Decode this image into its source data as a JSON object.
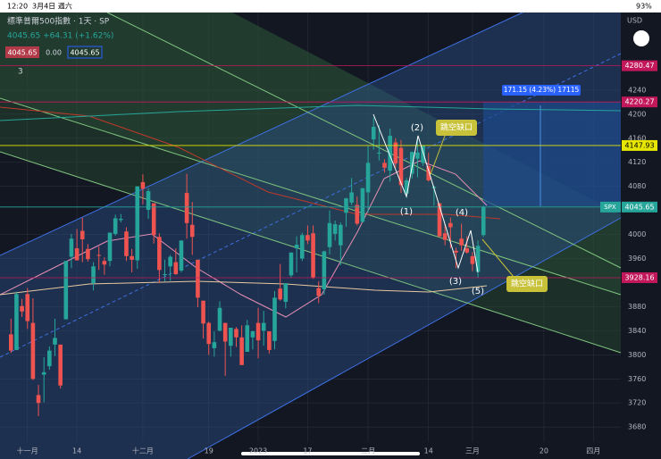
{
  "status_bar": {
    "time": "12:20",
    "date": "3月4日 週六",
    "battery": "93%"
  },
  "chart_data": {
    "type": "candlestick",
    "title": "標準普爾500指數 · 1天 · SP",
    "quote": "4045.65 +64.31 (+1.62%)",
    "bid": "4045.65",
    "spread": "0.00",
    "ask": "4045.65",
    "indicator_count": "3",
    "currency": "USD",
    "symbol": "SPX",
    "up_color": "#26a69a",
    "down_color": "#ef5350",
    "ylim": [
      3655,
      4369
    ],
    "xlim": [
      -2,
      111
    ],
    "yticks": [
      3680,
      3720,
      3760,
      3800,
      3840,
      3880,
      3960,
      4000,
      4080,
      4120,
      4160,
      4200,
      4240
    ],
    "xticks": [
      {
        "value": 3,
        "label": "十一月"
      },
      {
        "value": 12,
        "label": "14"
      },
      {
        "value": 24,
        "label": "十二月"
      },
      {
        "value": 36,
        "label": "19"
      },
      {
        "value": 45,
        "label": "2023"
      },
      {
        "value": 54,
        "label": "17"
      },
      {
        "value": 65,
        "label": "二月"
      },
      {
        "value": 76,
        "label": "14"
      },
      {
        "value": 84,
        "label": "三月"
      },
      {
        "value": 97,
        "label": "20"
      },
      {
        "value": 106,
        "label": "四月"
      }
    ],
    "price_labels": [
      {
        "value": 4280.47,
        "color": "#c2185b"
      },
      {
        "value": 4220.27,
        "color": "#c2185b"
      },
      {
        "value": 4147.93,
        "color": "#e6e600"
      },
      {
        "value": 4045.65,
        "color": "#26a69a"
      },
      {
        "value": 3928.16,
        "color": "#c2185b"
      }
    ],
    "measure": "171.15 (4.23%) 17115",
    "wave_labels": [
      "(1)",
      "(2)",
      "(3)",
      "(4)",
      "(5)"
    ],
    "gap_labels": [
      "跳空缺口",
      "跳空缺口"
    ],
    "candles": [
      [
        3834,
        3860,
        3803,
        3807
      ],
      [
        3808,
        3905,
        3808,
        3901
      ],
      [
        3881,
        3893,
        3863,
        3872
      ],
      [
        3901,
        3911,
        3843,
        3856
      ],
      [
        3853,
        3894,
        3758,
        3760
      ],
      [
        3733,
        3750,
        3698,
        3720
      ],
      [
        3767,
        3796,
        3721,
        3771
      ],
      [
        3781,
        3814,
        3775,
        3807
      ],
      [
        3817,
        3860,
        3798,
        3828
      ],
      [
        3817,
        3817,
        3744,
        3749
      ],
      [
        3859,
        3956,
        3859,
        3956
      ],
      [
        3963,
        4001,
        3944,
        3993
      ],
      [
        3977,
        4009,
        3957,
        3957
      ],
      [
        4006,
        4028,
        3954,
        3992
      ],
      [
        3976,
        3984,
        3955,
        3959
      ],
      [
        3919,
        3954,
        3907,
        3947
      ],
      [
        3966,
        3980,
        3941,
        3965
      ],
      [
        3956,
        3962,
        3933,
        3950
      ],
      [
        3956,
        4003,
        3947,
        4003
      ],
      [
        4001,
        4033,
        3998,
        4027
      ],
      [
        4024,
        4034,
        4020,
        4026
      ],
      [
        4005,
        4012,
        3956,
        3964
      ],
      [
        3964,
        3976,
        3937,
        3958
      ],
      [
        3957,
        4080,
        3943,
        4080
      ],
      [
        4087,
        4100,
        4050,
        4076
      ],
      [
        4041,
        4077,
        4026,
        4072
      ],
      [
        4052,
        4052,
        3985,
        3999
      ],
      [
        3996,
        4002,
        3919,
        3941
      ],
      [
        3933,
        3958,
        3922,
        3934
      ],
      [
        3947,
        3966,
        3923,
        3963
      ],
      [
        3954,
        3977,
        3933,
        3934
      ],
      [
        3940,
        3990,
        3937,
        3990
      ],
      [
        4069,
        4101,
        3993,
        4019
      ],
      [
        4016,
        4054,
        3966,
        3996
      ],
      [
        3958,
        3958,
        3879,
        3895
      ],
      [
        3890,
        3890,
        3827,
        3852
      ],
      [
        3853,
        3855,
        3800,
        3818
      ],
      [
        3811,
        3839,
        3797,
        3821
      ],
      [
        3840,
        3889,
        3839,
        3878
      ],
      [
        3853,
        3853,
        3765,
        3822
      ],
      [
        3815,
        3845,
        3797,
        3845
      ],
      [
        3843,
        3846,
        3813,
        3829
      ],
      [
        3829,
        3849,
        3783,
        3783
      ],
      [
        3805,
        3858,
        3805,
        3849
      ],
      [
        3829,
        3840,
        3809,
        3839
      ],
      [
        3853,
        3878,
        3794,
        3824
      ],
      [
        3840,
        3873,
        3815,
        3853
      ],
      [
        3839,
        3839,
        3802,
        3808
      ],
      [
        3823,
        3906,
        3809,
        3895
      ],
      [
        3910,
        3951,
        3890,
        3892
      ],
      [
        3888,
        3919,
        3877,
        3919
      ],
      [
        3932,
        3970,
        3928,
        3970
      ],
      [
        3977,
        3997,
        3937,
        3983
      ],
      [
        3960,
        4003,
        3956,
        3999
      ],
      [
        3999,
        4015,
        3984,
        3990
      ],
      [
        4002,
        4015,
        3926,
        3928
      ],
      [
        3911,
        3922,
        3886,
        3898
      ],
      [
        3909,
        3973,
        3900,
        3972
      ],
      [
        3979,
        4040,
        3967,
        4019
      ],
      [
        4001,
        4023,
        3990,
        4017
      ],
      [
        3982,
        4020,
        3949,
        4016
      ],
      [
        4036,
        4061,
        4013,
        4060
      ],
      [
        4053,
        4094,
        4049,
        4070
      ],
      [
        4049,
        4063,
        4015,
        4018
      ],
      [
        4021,
        4077,
        4020,
        4077
      ],
      [
        4070,
        4148,
        4037,
        4119
      ],
      [
        4158,
        4195,
        4141,
        4179
      ],
      [
        4136,
        4182,
        4123,
        4136
      ],
      [
        4119,
        4125,
        4103,
        4111
      ],
      [
        4106,
        4176,
        4088,
        4164
      ],
      [
        4153,
        4160,
        4111,
        4118
      ],
      [
        4144,
        4157,
        4069,
        4082
      ],
      [
        4068,
        4094,
        4061,
        4090
      ],
      [
        4101,
        4138,
        4093,
        4137
      ],
      [
        4126,
        4159,
        4095,
        4136
      ],
      [
        4119,
        4148,
        4114,
        4148
      ],
      [
        4114,
        4136,
        4088,
        4090
      ],
      [
        4077,
        4081,
        4048,
        4079
      ],
      [
        4052,
        4052,
        3995,
        3997
      ],
      [
        4002,
        4017,
        3982,
        3991
      ],
      [
        4019,
        4028,
        3977,
        4012
      ],
      [
        3973,
        3978,
        3944,
        3970
      ],
      [
        3993,
        4018,
        3973,
        3982
      ],
      [
        3977,
        3997,
        3968,
        3970
      ],
      [
        3964,
        3971,
        3939,
        3951
      ],
      [
        3938,
        3990,
        3928,
        3981
      ],
      [
        3999,
        4048,
        3996,
        4045.65
      ]
    ]
  }
}
